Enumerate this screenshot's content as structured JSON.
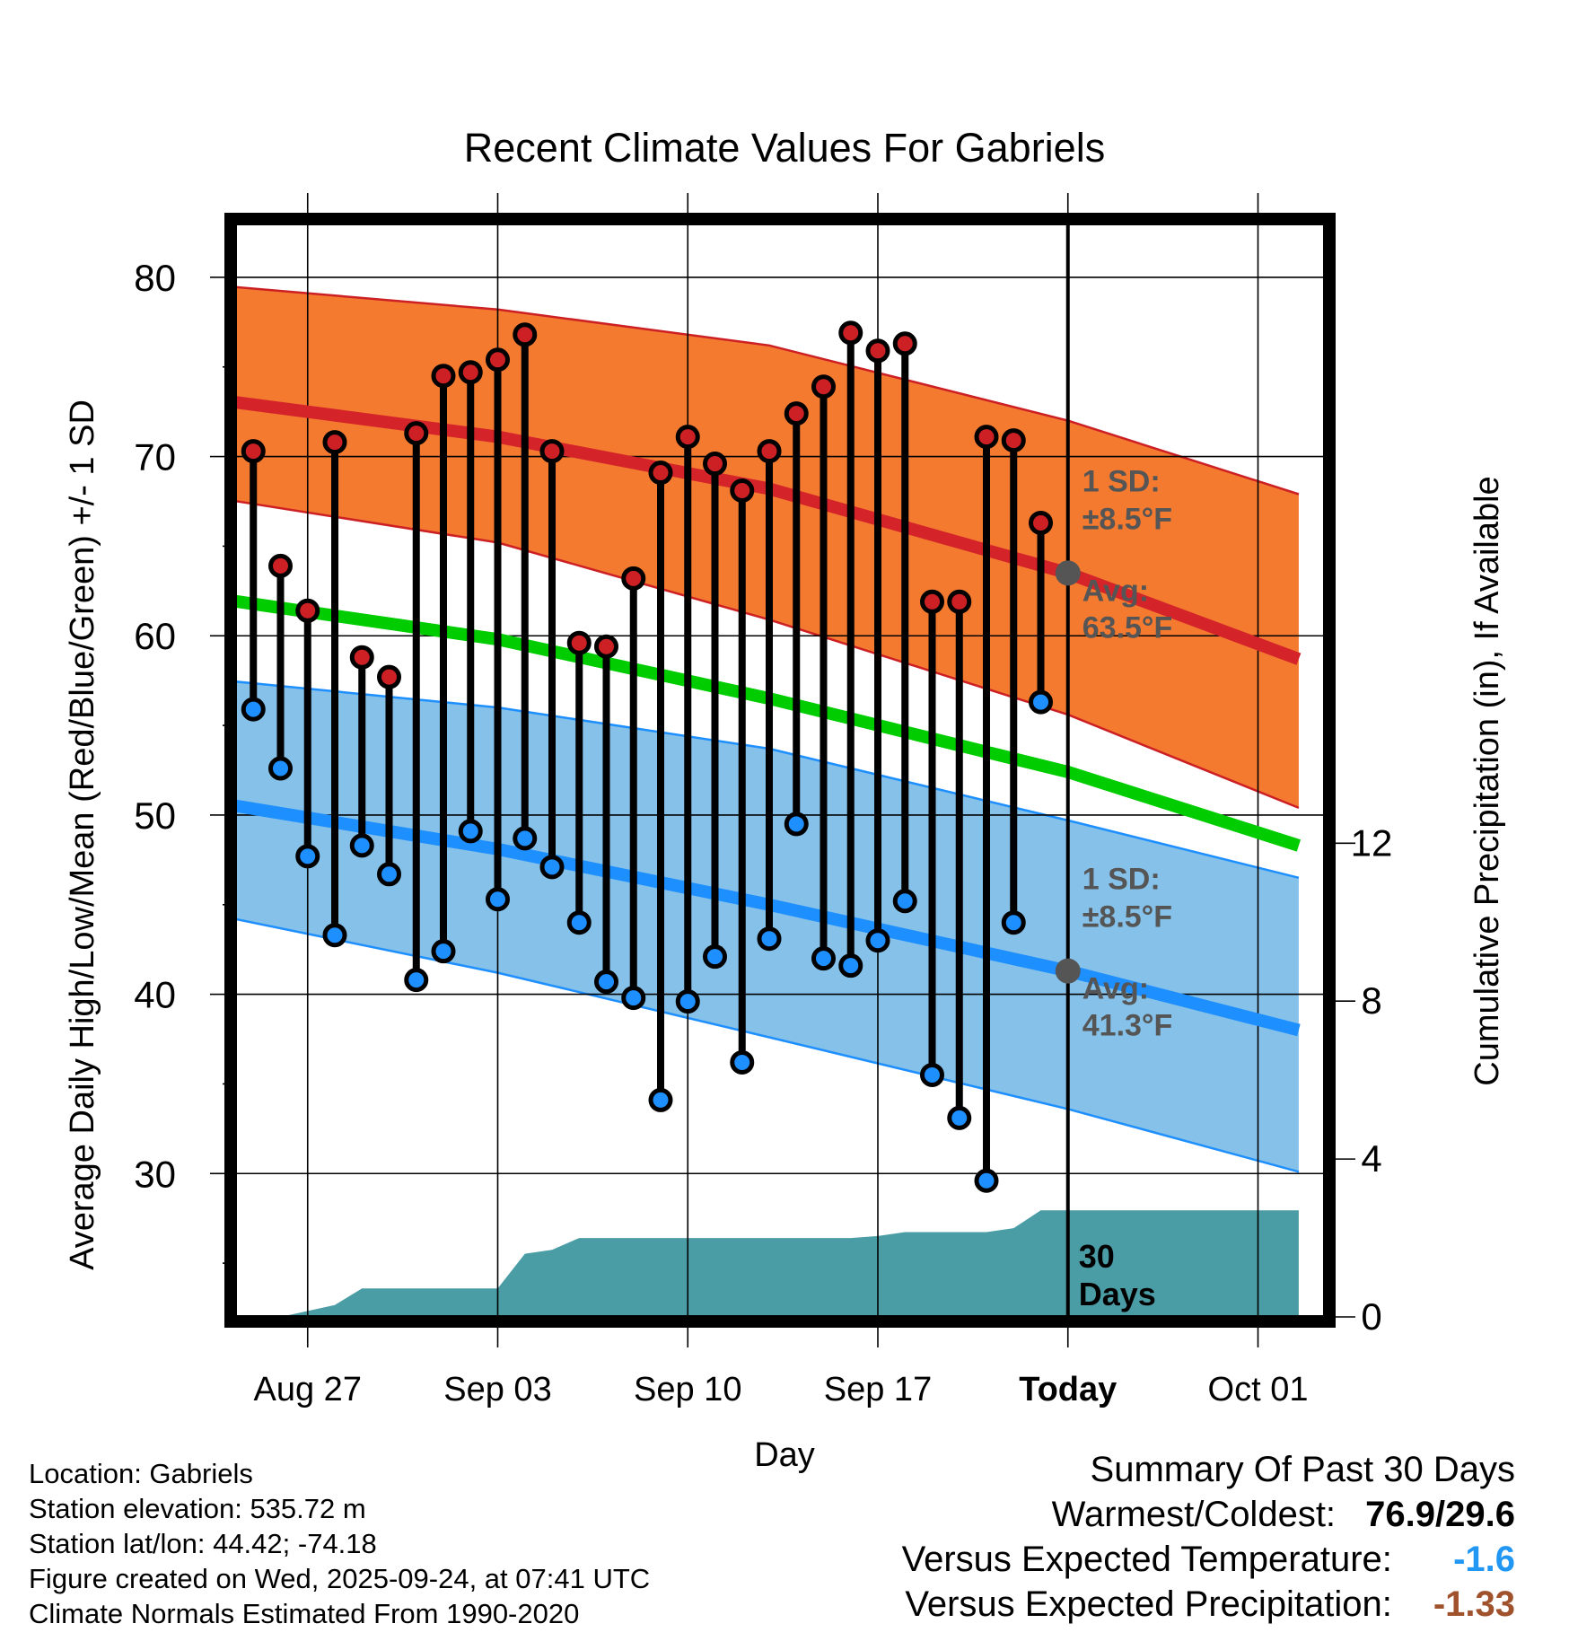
{
  "chart_data": {
    "type": "line",
    "title": "Recent Climate Values For Gabriels",
    "xlabel": "Day",
    "ylabel": "Average Daily High/Low/Mean (Red/Blue/Green) +/- 1 SD",
    "y2label": "Cumulative Precipitation (in), If Available",
    "ylim": [
      22,
      83
    ],
    "y2lim": [
      0,
      27.7
    ],
    "xlim": [
      0,
      39.5
    ],
    "yticks": [
      "30",
      "40",
      "50",
      "60",
      "70",
      "80"
    ],
    "y2ticks": [
      "0",
      "4",
      "8",
      "12"
    ],
    "xticks": [
      {
        "day": 3,
        "label": "Aug 27"
      },
      {
        "day": 10,
        "label": "Sep 03"
      },
      {
        "day": 17,
        "label": "Sep 10"
      },
      {
        "day": 24,
        "label": "Sep 17"
      },
      {
        "day": 31,
        "label": "Today"
      },
      {
        "day": 38,
        "label": "Oct 01"
      }
    ],
    "today_day": 31,
    "today_label": "30 Days",
    "daily": {
      "days": [
        1,
        2,
        3,
        4,
        5,
        6,
        7,
        8,
        9,
        10,
        11,
        12,
        13,
        14,
        15,
        16,
        17,
        18,
        19,
        20,
        21,
        22,
        23,
        24,
        25,
        26,
        27,
        28,
        29,
        30
      ],
      "highs": [
        70.3,
        63.9,
        61.4,
        70.8,
        58.8,
        57.7,
        71.3,
        74.5,
        74.7,
        75.4,
        76.8,
        70.3,
        59.6,
        59.4,
        63.2,
        69.1,
        71.1,
        69.6,
        68.1,
        70.3,
        72.4,
        73.9,
        76.9,
        75.9,
        76.3,
        61.9,
        61.9,
        71.1,
        70.9,
        66.3
      ],
      "lows": [
        55.9,
        52.6,
        47.7,
        43.3,
        48.3,
        46.7,
        40.8,
        42.4,
        49.1,
        45.3,
        48.7,
        47.1,
        44.0,
        40.7,
        39.8,
        34.1,
        39.6,
        42.1,
        36.2,
        43.1,
        49.5,
        42.0,
        41.6,
        43.0,
        45.2,
        35.5,
        33.1,
        29.6,
        44.0,
        56.3
      ]
    },
    "normals": {
      "days": [
        0,
        10,
        20,
        31,
        39.5
      ],
      "mean_high": [
        73.1,
        71.1,
        68.2,
        63.5,
        58.7
      ],
      "high_upper": [
        79.5,
        78.2,
        76.2,
        72.0,
        67.9
      ],
      "high_lower": [
        67.6,
        65.2,
        60.9,
        55.6,
        50.4
      ],
      "mean": [
        62.0,
        59.8,
        56.5,
        52.4,
        48.3
      ],
      "mean_low": [
        50.6,
        48.1,
        45.0,
        41.3,
        38.0
      ],
      "low_upper": [
        57.5,
        56.0,
        53.7,
        49.7,
        46.5
      ],
      "low_lower": [
        44.3,
        41.2,
        37.6,
        33.6,
        30.1
      ]
    },
    "precipitation": {
      "days": [
        0,
        2,
        4,
        5,
        10,
        11,
        12,
        13,
        14,
        23,
        24,
        25,
        28,
        29,
        30,
        39.5
      ],
      "cumulative_in": [
        0,
        0,
        0.3,
        0.72,
        0.72,
        1.6,
        1.7,
        2.0,
        2.0,
        2.0,
        2.05,
        2.15,
        2.15,
        2.25,
        2.7,
        2.7
      ]
    },
    "annotations": {
      "high_sd_label": "1 SD:",
      "high_sd_value": "±8.5°F",
      "high_avg_label": "Avg:",
      "high_avg_value": "63.5°F",
      "high_avg": 63.5,
      "low_sd_label": "1 SD:",
      "low_sd_value": "±8.5°F",
      "low_avg_label": "Avg:",
      "low_avg_value": "41.3°F",
      "low_avg": 41.3
    }
  },
  "info": {
    "location": "Location: Gabriels",
    "elevation": "Station elevation: 535.72 m",
    "latlon": "Station lat/lon: 44.42; -74.18",
    "created": "Figure created on Wed, 2025-09-24, at 07:41 UTC",
    "normals": "Climate Normals Estimated From 1990-2020"
  },
  "summary": {
    "title": "Summary Of Past 30 Days",
    "warm_cold_label": "Warmest/Coldest:",
    "warm_cold_value": "76.9/29.6",
    "temp_label": "Versus Expected Temperature:",
    "temp_value": "-1.6",
    "precip_label": "Versus Expected Precipitation:",
    "precip_value": "-1.33"
  },
  "colors": {
    "high_band": "#f47a30",
    "high_line": "#d4242a",
    "high_edge": "#cc2024",
    "mean_line": "#00cc00",
    "low_band": "#85c1e8",
    "low_line": "#1e8fff",
    "low_edge": "#1e8fff",
    "precip": "#4a9ca5",
    "annotation": "#555555",
    "high_dot": "#cc2024",
    "low_dot": "#1e8fff",
    "temp_anomaly": "#2196f3",
    "precip_anomaly": "#a0522d"
  }
}
